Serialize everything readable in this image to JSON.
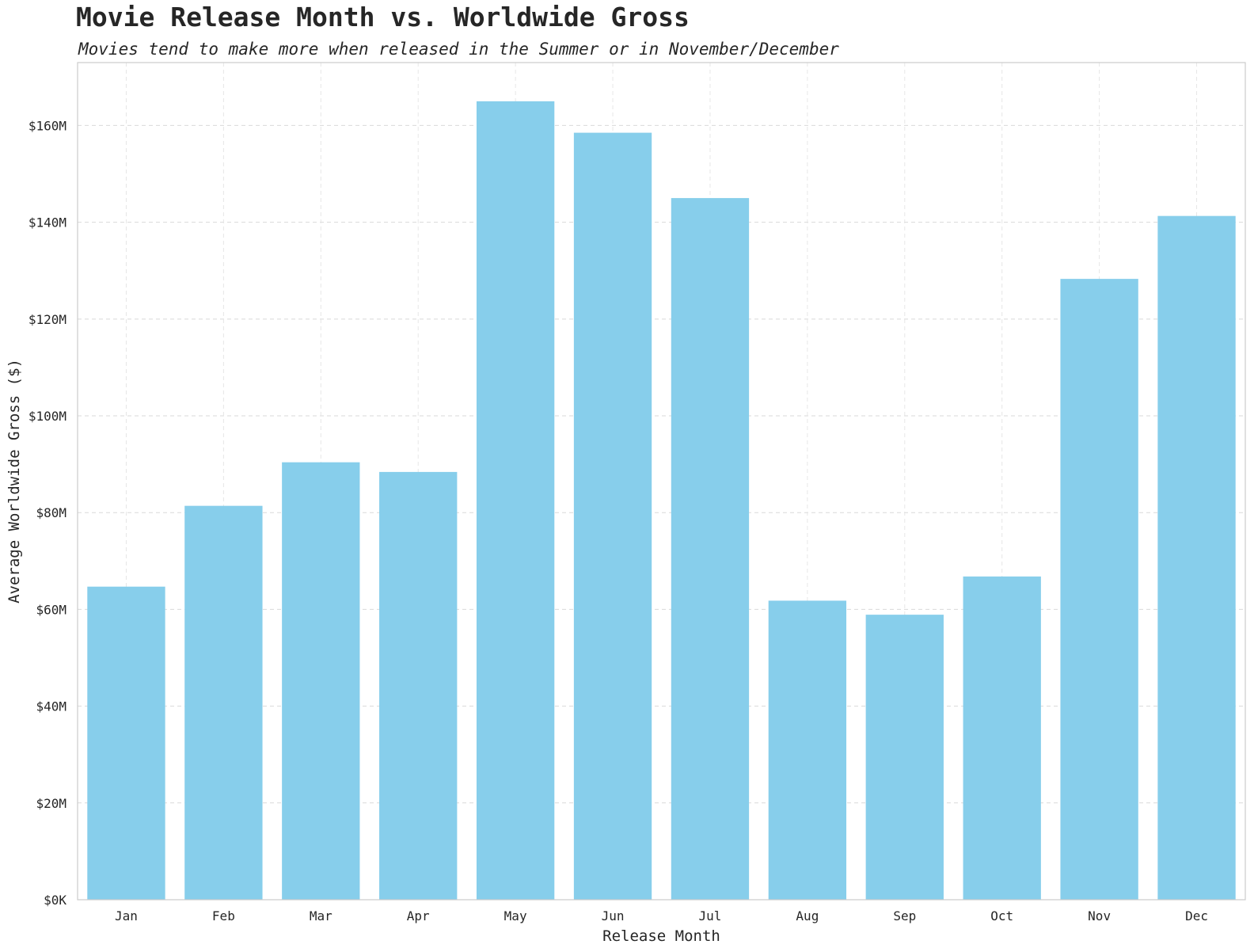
{
  "chart_data": {
    "type": "bar",
    "title": "Movie Release Month vs. Worldwide Gross",
    "subtitle": "Movies tend to make more when released in the Summer or in November/December",
    "xlabel": "Release Month",
    "ylabel": "Average Worldwide Gross ($)",
    "categories": [
      "Jan",
      "Feb",
      "Mar",
      "Apr",
      "May",
      "Jun",
      "Jul",
      "Aug",
      "Sep",
      "Oct",
      "Nov",
      "Dec"
    ],
    "values": [
      64.7,
      81.4,
      90.4,
      88.4,
      165.0,
      158.5,
      145.0,
      61.8,
      58.9,
      66.8,
      128.3,
      141.3
    ],
    "value_unit": "$M",
    "ylim": [
      0,
      173
    ],
    "yticks": [
      0,
      20,
      40,
      60,
      80,
      100,
      120,
      140,
      160
    ],
    "ytick_labels": [
      "$0K",
      "$20M",
      "$40M",
      "$60M",
      "$80M",
      "$100M",
      "$120M",
      "$140M",
      "$160M"
    ],
    "grid": true,
    "legend": "none",
    "colors": {
      "bar": "#87CEEB",
      "grid": "#d9d9d9",
      "axis": "#cccccc",
      "text": "#262626"
    }
  }
}
